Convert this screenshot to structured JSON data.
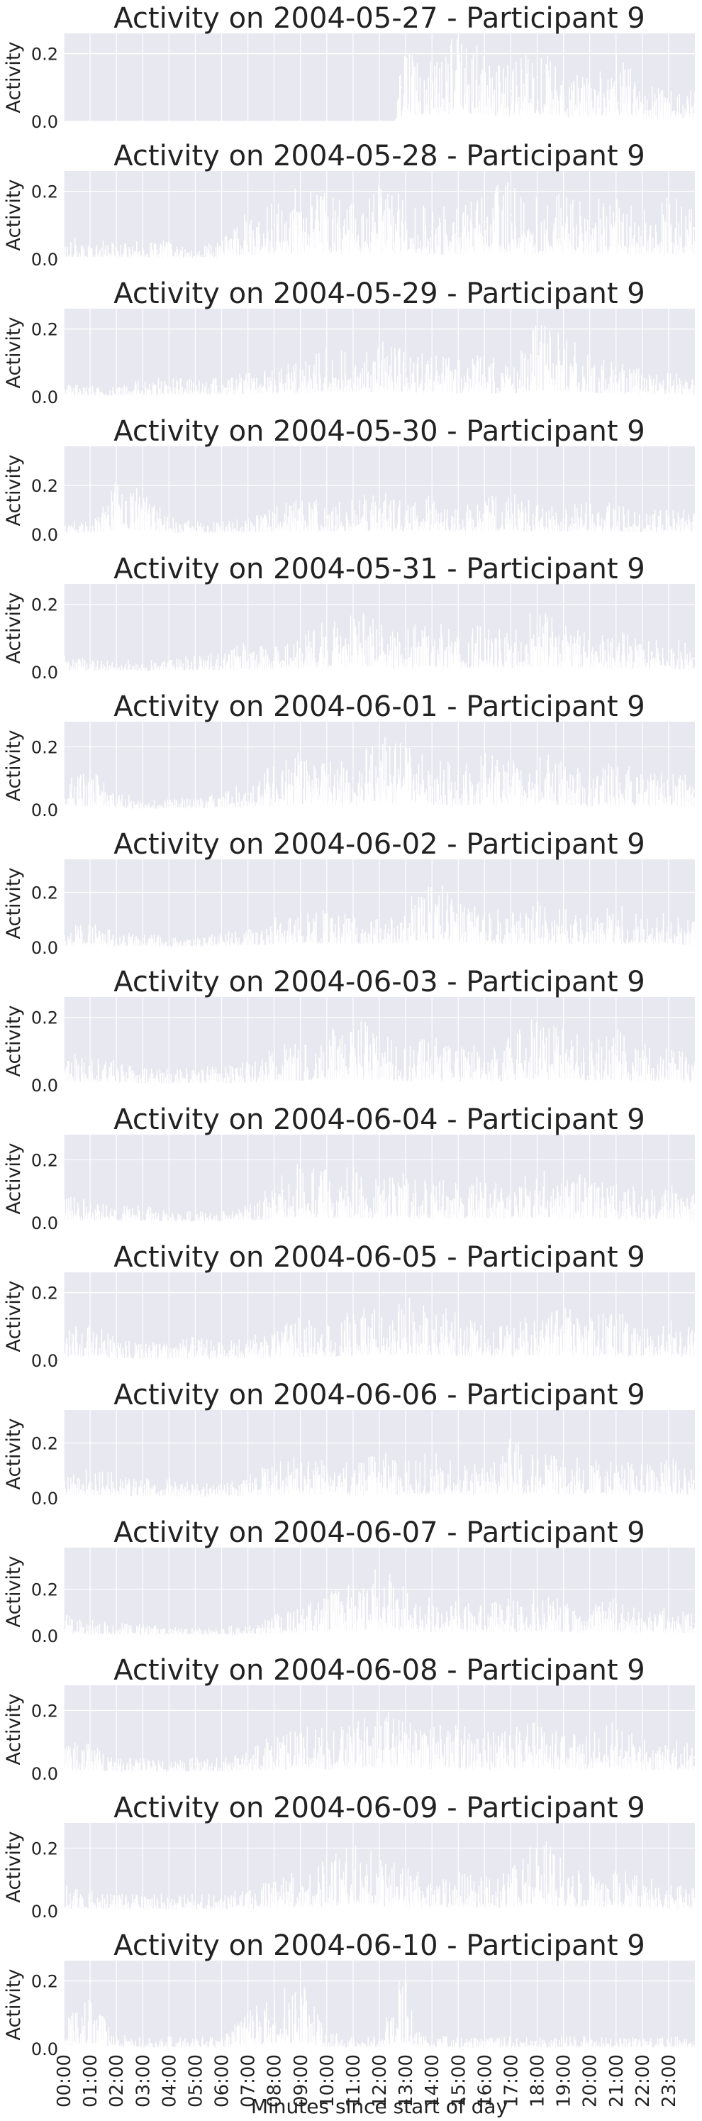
{
  "figure": {
    "xlabel": "Minutes since start of day",
    "ylabel": "Activity",
    "background_color": "#e8e8f0",
    "grid_color": "#ffffff",
    "line_color": "#ffffff",
    "text_color": "#222222",
    "x_ticks": [
      "00:00",
      "01:00",
      "02:00",
      "03:00",
      "04:00",
      "05:00",
      "06:00",
      "07:00",
      "08:00",
      "09:00",
      "10:00",
      "11:00",
      "12:00",
      "13:00",
      "14:00",
      "15:00",
      "16:00",
      "17:00",
      "18:00",
      "19:00",
      "20:00",
      "21:00",
      "22:00",
      "23:00"
    ],
    "x_tick_minutes": [
      0,
      60,
      120,
      180,
      240,
      300,
      360,
      420,
      480,
      540,
      600,
      660,
      720,
      780,
      840,
      900,
      960,
      1020,
      1080,
      1140,
      1200,
      1260,
      1320,
      1380
    ],
    "xlim": [
      0,
      1440
    ]
  },
  "chart_data": [
    {
      "type": "area",
      "title": "Activity on 2004-05-27 - Participant 9",
      "ylabel": "Activity",
      "ylim": [
        0,
        0.26
      ],
      "y_ticks": [
        "0.0",
        "0.2"
      ],
      "y_tick_values": [
        0,
        0.2
      ],
      "x": [
        0,
        120,
        240,
        360,
        480,
        600,
        720,
        755,
        770,
        800,
        840,
        900,
        960,
        1020,
        1080,
        1140,
        1200,
        1260,
        1320,
        1380,
        1439
      ],
      "y": [
        0,
        0,
        0,
        0,
        0,
        0,
        0,
        0,
        0.1,
        0.14,
        0.12,
        0.15,
        0.11,
        0.09,
        0.13,
        0.08,
        0.07,
        0.12,
        0.06,
        0.05,
        0.05
      ]
    },
    {
      "type": "area",
      "title": "Activity on 2004-05-28 - Participant 9",
      "ylabel": "Activity",
      "ylim": [
        0,
        0.26
      ],
      "y_ticks": [
        "0.0",
        "0.2"
      ],
      "y_tick_values": [
        0,
        0.2
      ],
      "x": [
        0,
        60,
        120,
        180,
        240,
        300,
        360,
        420,
        480,
        540,
        600,
        660,
        720,
        780,
        840,
        900,
        960,
        1020,
        1080,
        1140,
        1200,
        1260,
        1320,
        1380,
        1439
      ],
      "y": [
        0.04,
        0.03,
        0.03,
        0.03,
        0.03,
        0.02,
        0.03,
        0.08,
        0.1,
        0.12,
        0.11,
        0.09,
        0.12,
        0.1,
        0.08,
        0.09,
        0.11,
        0.13,
        0.1,
        0.12,
        0.09,
        0.11,
        0.08,
        0.1,
        0.09
      ]
    },
    {
      "type": "area",
      "title": "Activity on 2004-05-29 - Participant 9",
      "ylabel": "Activity",
      "ylim": [
        0,
        0.26
      ],
      "y_ticks": [
        "0.0",
        "0.2"
      ],
      "y_tick_values": [
        0,
        0.2
      ],
      "x": [
        0,
        60,
        120,
        180,
        240,
        300,
        360,
        420,
        480,
        540,
        600,
        660,
        720,
        780,
        840,
        900,
        960,
        1020,
        1080,
        1140,
        1200,
        1260,
        1320,
        1380,
        1439
      ],
      "y": [
        0.02,
        0.02,
        0.02,
        0.03,
        0.03,
        0.03,
        0.03,
        0.04,
        0.05,
        0.06,
        0.08,
        0.07,
        0.09,
        0.08,
        0.07,
        0.06,
        0.07,
        0.05,
        0.12,
        0.1,
        0.07,
        0.06,
        0.05,
        0.04,
        0.03
      ]
    },
    {
      "type": "area",
      "title": "Activity on 2004-05-30 - Participant 9",
      "ylabel": "Activity",
      "ylim": [
        0,
        0.36
      ],
      "y_ticks": [
        "0.0",
        "0.2"
      ],
      "y_tick_values": [
        0,
        0.2
      ],
      "x": [
        0,
        60,
        120,
        180,
        240,
        300,
        360,
        420,
        480,
        540,
        600,
        660,
        720,
        780,
        840,
        900,
        960,
        1020,
        1080,
        1140,
        1200,
        1260,
        1320,
        1380,
        1439
      ],
      "y": [
        0.03,
        0.03,
        0.12,
        0.1,
        0.04,
        0.03,
        0.03,
        0.04,
        0.06,
        0.09,
        0.07,
        0.08,
        0.1,
        0.07,
        0.09,
        0.06,
        0.08,
        0.1,
        0.07,
        0.06,
        0.08,
        0.07,
        0.05,
        0.06,
        0.05
      ]
    },
    {
      "type": "area",
      "title": "Activity on 2004-05-31 - Participant 9",
      "ylabel": "Activity",
      "ylim": [
        0,
        0.26
      ],
      "y_ticks": [
        "0.0",
        "0.2"
      ],
      "y_tick_values": [
        0,
        0.2
      ],
      "x": [
        0,
        60,
        120,
        180,
        240,
        300,
        360,
        420,
        480,
        540,
        600,
        660,
        720,
        780,
        840,
        900,
        960,
        1020,
        1080,
        1140,
        1200,
        1260,
        1320,
        1380,
        1439
      ],
      "y": [
        0.03,
        0.02,
        0.02,
        0.02,
        0.02,
        0.03,
        0.03,
        0.05,
        0.04,
        0.06,
        0.09,
        0.11,
        0.08,
        0.07,
        0.09,
        0.06,
        0.08,
        0.07,
        0.11,
        0.08,
        0.06,
        0.07,
        0.05,
        0.06,
        0.04
      ]
    },
    {
      "type": "area",
      "title": "Activity on 2004-06-01 - Participant 9",
      "ylabel": "Activity",
      "ylim": [
        0,
        0.28
      ],
      "y_ticks": [
        "0.0",
        "0.2"
      ],
      "y_tick_values": [
        0,
        0.2
      ],
      "x": [
        0,
        60,
        120,
        180,
        240,
        300,
        360,
        420,
        480,
        540,
        600,
        660,
        720,
        780,
        840,
        900,
        960,
        1020,
        1080,
        1140,
        1200,
        1260,
        1320,
        1380,
        1439
      ],
      "y": [
        0.05,
        0.07,
        0.03,
        0.02,
        0.02,
        0.02,
        0.03,
        0.05,
        0.08,
        0.11,
        0.09,
        0.1,
        0.13,
        0.12,
        0.09,
        0.08,
        0.1,
        0.09,
        0.11,
        0.08,
        0.07,
        0.09,
        0.06,
        0.07,
        0.06
      ]
    },
    {
      "type": "area",
      "title": "Activity on 2004-06-02 - Participant 9",
      "ylabel": "Activity",
      "ylim": [
        0,
        0.32
      ],
      "y_ticks": [
        "0.0",
        "0.2"
      ],
      "y_tick_values": [
        0,
        0.2
      ],
      "x": [
        0,
        60,
        120,
        180,
        240,
        300,
        360,
        420,
        480,
        540,
        600,
        660,
        720,
        780,
        840,
        900,
        960,
        1020,
        1080,
        1140,
        1200,
        1260,
        1320,
        1380,
        1439
      ],
      "y": [
        0.04,
        0.05,
        0.03,
        0.03,
        0.02,
        0.02,
        0.03,
        0.04,
        0.06,
        0.07,
        0.08,
        0.07,
        0.06,
        0.09,
        0.14,
        0.1,
        0.08,
        0.07,
        0.09,
        0.08,
        0.07,
        0.09,
        0.06,
        0.07,
        0.05
      ]
    },
    {
      "type": "area",
      "title": "Activity on 2004-06-03 - Participant 9",
      "ylabel": "Activity",
      "ylim": [
        0,
        0.26
      ],
      "y_ticks": [
        "0.0",
        "0.2"
      ],
      "y_tick_values": [
        0,
        0.2
      ],
      "x": [
        0,
        60,
        120,
        180,
        240,
        300,
        360,
        420,
        480,
        540,
        600,
        660,
        720,
        780,
        840,
        900,
        960,
        1020,
        1080,
        1140,
        1200,
        1260,
        1320,
        1380,
        1439
      ],
      "y": [
        0.06,
        0.05,
        0.04,
        0.03,
        0.03,
        0.03,
        0.03,
        0.04,
        0.06,
        0.08,
        0.09,
        0.12,
        0.09,
        0.07,
        0.08,
        0.07,
        0.06,
        0.08,
        0.12,
        0.09,
        0.08,
        0.1,
        0.07,
        0.06,
        0.05
      ]
    },
    {
      "type": "area",
      "title": "Activity on 2004-06-04 - Participant 9",
      "ylabel": "Activity",
      "ylim": [
        0,
        0.28
      ],
      "y_ticks": [
        "0.0",
        "0.2"
      ],
      "y_tick_values": [
        0,
        0.2
      ],
      "x": [
        0,
        60,
        120,
        180,
        240,
        300,
        360,
        420,
        480,
        540,
        600,
        660,
        720,
        780,
        840,
        900,
        960,
        1020,
        1080,
        1140,
        1200,
        1260,
        1320,
        1380,
        1439
      ],
      "y": [
        0.05,
        0.04,
        0.03,
        0.03,
        0.02,
        0.02,
        0.02,
        0.03,
        0.07,
        0.11,
        0.09,
        0.1,
        0.08,
        0.09,
        0.07,
        0.08,
        0.09,
        0.07,
        0.1,
        0.08,
        0.09,
        0.07,
        0.06,
        0.08,
        0.05
      ]
    },
    {
      "type": "area",
      "title": "Activity on 2004-06-05 - Participant 9",
      "ylabel": "Activity",
      "ylim": [
        0,
        0.26
      ],
      "y_ticks": [
        "0.0",
        "0.2"
      ],
      "y_tick_values": [
        0,
        0.2
      ],
      "x": [
        0,
        60,
        120,
        180,
        240,
        300,
        360,
        420,
        480,
        540,
        600,
        660,
        720,
        780,
        840,
        900,
        960,
        1020,
        1080,
        1140,
        1200,
        1260,
        1320,
        1380,
        1439
      ],
      "y": [
        0.05,
        0.06,
        0.04,
        0.03,
        0.03,
        0.04,
        0.03,
        0.04,
        0.05,
        0.07,
        0.06,
        0.08,
        0.1,
        0.11,
        0.08,
        0.09,
        0.07,
        0.06,
        0.08,
        0.09,
        0.07,
        0.08,
        0.06,
        0.07,
        0.05
      ]
    },
    {
      "type": "area",
      "title": "Activity on 2004-06-06 - Participant 9",
      "ylabel": "Activity",
      "ylim": [
        0,
        0.32
      ],
      "y_ticks": [
        "0.0",
        "0.2"
      ],
      "y_tick_values": [
        0,
        0.2
      ],
      "x": [
        0,
        60,
        120,
        180,
        240,
        300,
        360,
        420,
        480,
        540,
        600,
        660,
        720,
        780,
        840,
        900,
        960,
        1020,
        1080,
        1140,
        1200,
        1260,
        1320,
        1380,
        1439
      ],
      "y": [
        0.07,
        0.06,
        0.05,
        0.04,
        0.04,
        0.03,
        0.03,
        0.05,
        0.07,
        0.09,
        0.08,
        0.07,
        0.09,
        0.08,
        0.1,
        0.07,
        0.08,
        0.12,
        0.09,
        0.08,
        0.1,
        0.09,
        0.07,
        0.08,
        0.06
      ]
    },
    {
      "type": "area",
      "title": "Activity on 2004-06-07 - Participant 9",
      "ylabel": "Activity",
      "ylim": [
        0,
        0.38
      ],
      "y_ticks": [
        "0.0",
        "0.2"
      ],
      "y_tick_values": [
        0,
        0.2
      ],
      "x": [
        0,
        60,
        120,
        180,
        240,
        300,
        360,
        420,
        480,
        540,
        600,
        660,
        720,
        780,
        840,
        900,
        960,
        1020,
        1080,
        1140,
        1200,
        1260,
        1320,
        1380,
        1439
      ],
      "y": [
        0.05,
        0.04,
        0.03,
        0.03,
        0.02,
        0.02,
        0.02,
        0.03,
        0.05,
        0.07,
        0.1,
        0.14,
        0.16,
        0.12,
        0.09,
        0.1,
        0.08,
        0.09,
        0.11,
        0.08,
        0.07,
        0.09,
        0.06,
        0.07,
        0.05
      ]
    },
    {
      "type": "area",
      "title": "Activity on 2004-06-08 - Participant 9",
      "ylabel": "Activity",
      "ylim": [
        0,
        0.28
      ],
      "y_ticks": [
        "0.0",
        "0.2"
      ],
      "y_tick_values": [
        0,
        0.2
      ],
      "x": [
        0,
        60,
        120,
        180,
        240,
        300,
        360,
        420,
        480,
        540,
        600,
        660,
        720,
        780,
        840,
        900,
        960,
        1020,
        1080,
        1140,
        1200,
        1260,
        1320,
        1380,
        1439
      ],
      "y": [
        0.06,
        0.05,
        0.03,
        0.03,
        0.02,
        0.03,
        0.03,
        0.04,
        0.07,
        0.09,
        0.08,
        0.09,
        0.11,
        0.1,
        0.08,
        0.09,
        0.07,
        0.08,
        0.09,
        0.07,
        0.08,
        0.09,
        0.06,
        0.07,
        0.05
      ]
    },
    {
      "type": "area",
      "title": "Activity on 2004-06-09 - Participant 9",
      "ylabel": "Activity",
      "ylim": [
        0,
        0.28
      ],
      "y_ticks": [
        "0.0",
        "0.2"
      ],
      "y_tick_values": [
        0,
        0.2
      ],
      "x": [
        0,
        60,
        120,
        180,
        240,
        300,
        360,
        420,
        480,
        540,
        600,
        660,
        720,
        780,
        840,
        900,
        960,
        1020,
        1080,
        1140,
        1200,
        1260,
        1320,
        1380,
        1439
      ],
      "y": [
        0.05,
        0.04,
        0.03,
        0.03,
        0.03,
        0.03,
        0.03,
        0.04,
        0.06,
        0.07,
        0.09,
        0.12,
        0.1,
        0.08,
        0.07,
        0.08,
        0.06,
        0.07,
        0.14,
        0.09,
        0.07,
        0.08,
        0.06,
        0.05,
        0.04
      ]
    },
    {
      "type": "area",
      "title": "Activity on 2004-06-10 - Participant 9",
      "ylabel": "Activity",
      "ylim": [
        0,
        0.26
      ],
      "y_ticks": [
        "0.0",
        "0.2"
      ],
      "y_tick_values": [
        0,
        0.2
      ],
      "x": [
        0,
        60,
        120,
        180,
        240,
        300,
        360,
        420,
        480,
        540,
        600,
        660,
        720,
        780,
        800,
        840,
        900,
        960,
        1020,
        1080,
        1140,
        1200,
        1260,
        1320,
        1380,
        1439
      ],
      "y": [
        0.05,
        0.08,
        0.03,
        0.02,
        0.02,
        0.02,
        0.02,
        0.06,
        0.09,
        0.12,
        0.03,
        0.02,
        0.02,
        0.14,
        0.03,
        0.02,
        0.02,
        0.02,
        0.02,
        0.02,
        0.02,
        0.02,
        0.02,
        0.02,
        0.02,
        0.02
      ]
    }
  ]
}
